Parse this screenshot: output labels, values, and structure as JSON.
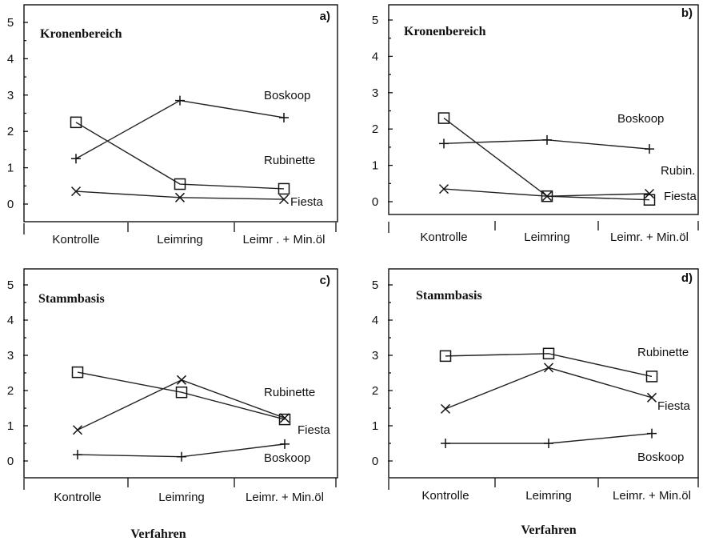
{
  "xaxis_title": "Verfahren",
  "chart_data": [
    {
      "type": "line",
      "panel_label": "a)",
      "title": "Kronenbereich",
      "categories": [
        "Kontrolle",
        "Leimring",
        "Leimr . + Min.öl"
      ],
      "ylim": [
        0,
        5
      ],
      "yticks": [
        0,
        1,
        2,
        3,
        4,
        5
      ],
      "grid": false,
      "series": [
        {
          "name": "Boskoop",
          "marker": "plus",
          "values": [
            1.25,
            2.85,
            2.38
          ]
        },
        {
          "name": "Rubinette",
          "marker": "square",
          "values": [
            2.25,
            0.55,
            0.42
          ]
        },
        {
          "name": "Fiesta",
          "marker": "x",
          "values": [
            0.35,
            0.18,
            0.13
          ]
        }
      ]
    },
    {
      "type": "line",
      "panel_label": "b)",
      "title": "Kronenbereich",
      "categories": [
        "Kontrolle",
        "Leimring",
        "Leimr. + Min.öl"
      ],
      "ylim": [
        0,
        5
      ],
      "yticks": [
        0,
        1,
        2,
        3,
        4,
        5
      ],
      "grid": false,
      "series": [
        {
          "name": "Boskoop",
          "marker": "plus",
          "values": [
            1.6,
            1.7,
            1.45
          ]
        },
        {
          "name": "Rubin.",
          "marker": "square",
          "values": [
            2.3,
            0.15,
            0.05
          ]
        },
        {
          "name": "Fiesta",
          "marker": "x",
          "values": [
            0.35,
            0.15,
            0.22
          ]
        }
      ]
    },
    {
      "type": "line",
      "panel_label": "c)",
      "title": "Stammbasis",
      "categories": [
        "Kontrolle",
        "Leimring",
        "Leimr. + Min.öl"
      ],
      "ylim": [
        0,
        5
      ],
      "yticks": [
        0,
        1,
        2,
        3,
        4,
        5
      ],
      "grid": false,
      "series": [
        {
          "name": "Rubinette",
          "marker": "square",
          "values": [
            2.52,
            1.95,
            1.18
          ]
        },
        {
          "name": "Fiesta",
          "marker": "x",
          "values": [
            0.88,
            2.3,
            1.22
          ]
        },
        {
          "name": "Boskoop",
          "marker": "plus",
          "values": [
            0.18,
            0.12,
            0.48
          ]
        }
      ]
    },
    {
      "type": "line",
      "panel_label": "d)",
      "title": "Stammbasis",
      "categories": [
        "Kontrolle",
        "Leimring",
        "Leimr. + Min.öl"
      ],
      "ylim": [
        0,
        5
      ],
      "yticks": [
        0,
        1,
        2,
        3,
        4,
        5
      ],
      "grid": false,
      "series": [
        {
          "name": "Rubinette",
          "marker": "square",
          "values": [
            2.98,
            3.05,
            2.4
          ]
        },
        {
          "name": "Fiesta",
          "marker": "x",
          "values": [
            1.48,
            2.65,
            1.8
          ]
        },
        {
          "name": "Boskoop",
          "marker": "plus",
          "values": [
            0.5,
            0.5,
            0.78
          ]
        }
      ]
    }
  ]
}
